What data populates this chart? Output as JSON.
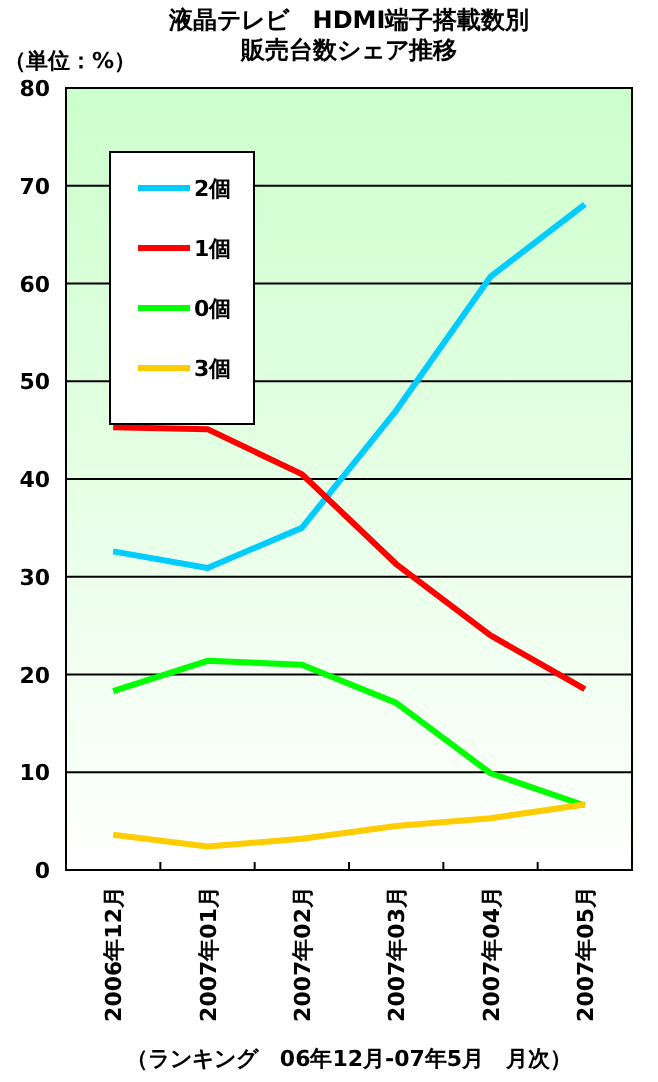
{
  "chart_data": {
    "type": "line",
    "title": "液晶テレビ　HDMI端子搭載数別",
    "subtitle": "販売台数シェア推移",
    "ylabel": "（単位：%）",
    "categories": [
      "2006年12月",
      "2007年01月",
      "2007年02月",
      "2007年03月",
      "2007年04月",
      "2007年05月"
    ],
    "series": [
      {
        "name": "2個",
        "color": "#00ccff",
        "values": [
          32.6,
          30.9,
          35,
          47,
          60.7,
          68.1
        ]
      },
      {
        "name": "1個",
        "color": "#ff0000",
        "values": [
          45.3,
          45.1,
          40.5,
          31.3,
          24,
          18.5
        ]
      },
      {
        "name": "0個",
        "color": "#00ff00",
        "values": [
          18.3,
          21.4,
          21,
          17.1,
          9.9,
          6.6
        ]
      },
      {
        "name": "3個",
        "color": "#ffcc00",
        "values": [
          3.6,
          2.4,
          3.2,
          4.5,
          5.3,
          6.7
        ]
      }
    ],
    "ylim": [
      0,
      80
    ],
    "yticks": [
      0,
      10,
      20,
      30,
      40,
      50,
      60,
      70,
      80
    ],
    "grid": "y",
    "legend": "top left",
    "marker": "none",
    "line_style": "solid",
    "annotations": [
      "（ランキング　06年12月-07年5月　月次）"
    ]
  }
}
